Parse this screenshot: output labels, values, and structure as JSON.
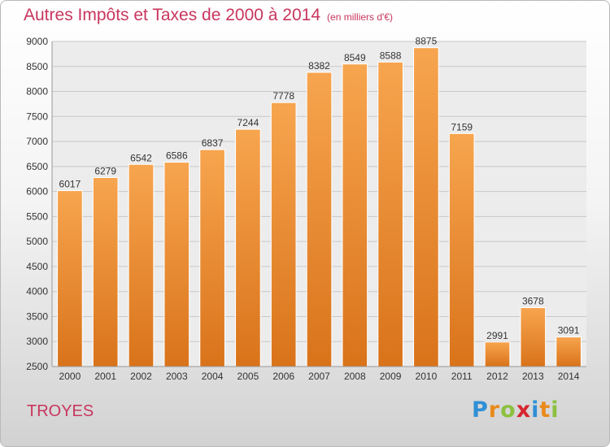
{
  "header": {
    "title": "Autres Impôts et Taxes de 2000 à 2014",
    "subtitle": "(en milliers d'€)"
  },
  "footer": {
    "city": "TROYES",
    "brand": "Proxiti",
    "brand_letters": [
      {
        "ch": "P",
        "color": "#2f8fd6"
      },
      {
        "ch": "r",
        "color": "#e98a1c"
      },
      {
        "ch": "o",
        "color": "#8cc13f"
      },
      {
        "ch": "x",
        "color": "#d6262f"
      },
      {
        "ch": "i",
        "color": "#2f8fd6"
      },
      {
        "ch": "t",
        "color": "#e98a1c"
      },
      {
        "ch": "i",
        "color": "#8cc13f"
      }
    ]
  },
  "colors": {
    "title": "#c8365e",
    "bar_light": "#f7a54f",
    "bar_dark": "#d9731a",
    "grid": "#c8c8c8",
    "plot_background": "#ececec"
  },
  "chart_data": {
    "type": "bar",
    "categories": [
      "2000",
      "2001",
      "2002",
      "2003",
      "2004",
      "2005",
      "2006",
      "2007",
      "2008",
      "2009",
      "2010",
      "2011",
      "2012",
      "2013",
      "2014"
    ],
    "values": [
      6017,
      6279,
      6542,
      6586,
      6837,
      7244,
      7778,
      8382,
      8549,
      8588,
      8875,
      7159,
      2991,
      3678,
      3091
    ],
    "title": "Autres Impôts et Taxes de 2000 à 2014",
    "subtitle": "(en milliers d'€)",
    "xlabel": "",
    "ylabel": "",
    "ylim": [
      2500,
      9000
    ],
    "yticks": [
      2500,
      3000,
      3500,
      4000,
      4500,
      5000,
      5500,
      6000,
      6500,
      7000,
      7500,
      8000,
      8500,
      9000
    ],
    "grid": true,
    "data_labels": true
  }
}
